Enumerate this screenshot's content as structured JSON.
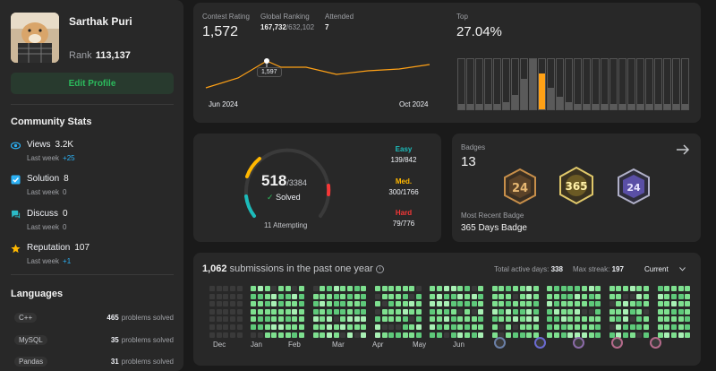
{
  "profile": {
    "username": "Sarthak Puri",
    "rank_label": "Rank",
    "rank_value": "113,137",
    "edit_button": "Edit Profile"
  },
  "community": {
    "title": "Community Stats",
    "stats": [
      {
        "label": "Views",
        "value": "3.2K",
        "sub": "Last week",
        "delta": "+25",
        "icon": "eye-icon",
        "color": "#2cb1f5"
      },
      {
        "label": "Solution",
        "value": "8",
        "sub": "Last week",
        "delta": "0",
        "icon": "check-square-icon",
        "color": "#2cb1f5"
      },
      {
        "label": "Discuss",
        "value": "0",
        "sub": "Last week",
        "delta": "0",
        "icon": "chat-bubble-icon",
        "color": "#2cbbc7"
      },
      {
        "label": "Reputation",
        "value": "107",
        "sub": "Last week",
        "delta": "+1",
        "icon": "star-icon",
        "color": "#ffb800"
      }
    ]
  },
  "languages": {
    "title": "Languages",
    "items": [
      {
        "name": "C++",
        "count": "465",
        "suffix": "problems solved"
      },
      {
        "name": "MySQL",
        "count": "35",
        "suffix": "problems solved"
      },
      {
        "name": "Pandas",
        "count": "31",
        "suffix": "problems solved"
      }
    ]
  },
  "rating": {
    "contest_rating_label": "Contest Rating",
    "contest_rating": "1,572",
    "global_ranking_label": "Global Ranking",
    "global_rank": "167,732",
    "global_total": "/632,102",
    "attended_label": "Attended",
    "attended": "7",
    "top_label": "Top",
    "top_value": "27.04%",
    "tooltip": "1,597",
    "x_start": "Jun 2024",
    "x_end": "Oct 2024",
    "line_color": "#ffa116"
  },
  "solved": {
    "solved": "518",
    "total": "/3384",
    "solved_label": "Solved",
    "attempting": "11 Attempting",
    "easy_label": "Easy",
    "easy_value": "139/842",
    "med_label": "Med.",
    "med_value": "300/1766",
    "hard_label": "Hard",
    "hard_value": "79/776",
    "easy_color": "#1cbbba",
    "med_color": "#ffb700",
    "hard_color": "#f63737"
  },
  "badges": {
    "label": "Badges",
    "count": "13",
    "recent_label": "Most Recent Badge",
    "recent_name": "365 Days Badge",
    "icons": [
      "badge-24-icon",
      "badge-365-icon",
      "badge-2024-icon"
    ]
  },
  "heatmap": {
    "count": "1,062",
    "text": "submissions in the past one year",
    "active_label": "Total active days:",
    "active_value": "338",
    "streak_label": "Max streak:",
    "streak_value": "197",
    "dropdown": "Current",
    "months": [
      "Dec",
      "Jan",
      "Feb",
      "Mar",
      "Apr",
      "May",
      "Jun"
    ],
    "accent": "#7ee08f"
  }
}
